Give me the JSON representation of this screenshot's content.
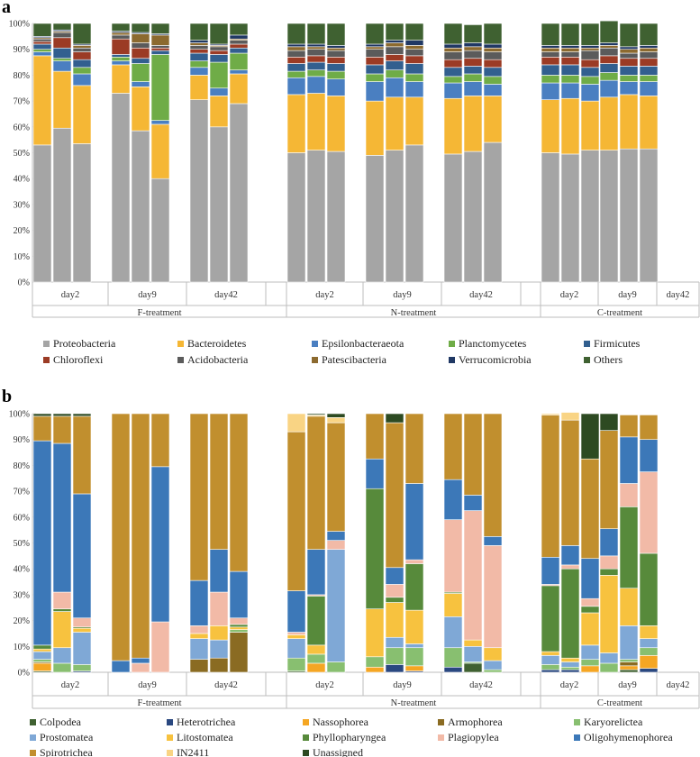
{
  "chart_data": [
    {
      "type": "stacked-bar",
      "panel": "a",
      "ylim": [
        0,
        100
      ],
      "yticks": [
        "0%",
        "10%",
        "20%",
        "30%",
        "40%",
        "50%",
        "60%",
        "70%",
        "80%",
        "90%",
        "100%"
      ],
      "treatments": [
        "F-treatment",
        "N-treatment",
        "C-treatment"
      ],
      "days": [
        "day2",
        "day9",
        "day42"
      ],
      "series": [
        {
          "name": "Proteobacteria",
          "color": "#a5a5a5"
        },
        {
          "name": "Bacteroidetes",
          "color": "#f5b735"
        },
        {
          "name": "Epsilonbacteraeota",
          "color": "#4a7fc1"
        },
        {
          "name": "Planctomycetes",
          "color": "#6fac47"
        },
        {
          "name": "Firmicutes",
          "color": "#325f8f"
        },
        {
          "name": "Chloroflexi",
          "color": "#9b3b25"
        },
        {
          "name": "Acidobacteria",
          "color": "#5b5b5b"
        },
        {
          "name": "Patescibacteria",
          "color": "#8c6a2f"
        },
        {
          "name": "Verrucomicrobia",
          "color": "#203864"
        },
        {
          "name": "Others",
          "color": "#3f6131"
        }
      ],
      "bars": [
        [
          53,
          34.5,
          1.5,
          1,
          2,
          1,
          1,
          0.5,
          0.5,
          5
        ],
        [
          59.5,
          22,
          4,
          1,
          4,
          4,
          2,
          0.5,
          0.5,
          2.5
        ],
        [
          53.5,
          22.5,
          4.5,
          2.5,
          3,
          3,
          1.5,
          1,
          0.5,
          8
        ],
        [
          73,
          11,
          1.5,
          1.5,
          1,
          6,
          1.5,
          1,
          0.5,
          3
        ],
        [
          58.5,
          17,
          2,
          7,
          2,
          4,
          2,
          3.5,
          0.5,
          3.5
        ],
        [
          40,
          21,
          1.5,
          25.5,
          1.5,
          1,
          1,
          4,
          0.5,
          4
        ],
        [
          70.5,
          9.5,
          3,
          2.5,
          3,
          1.5,
          1.5,
          1,
          1,
          6.5
        ],
        [
          60,
          12,
          3,
          10,
          3,
          1.5,
          1.5,
          0.5,
          0.5,
          8
        ],
        [
          69,
          11.5,
          1.5,
          6.5,
          2,
          1.5,
          1.5,
          0.5,
          1.5,
          4.5
        ],
        [
          50,
          22.5,
          6.5,
          2.5,
          3,
          2.5,
          2.5,
          1.5,
          1,
          8
        ],
        [
          51,
          22,
          6.5,
          2.5,
          3,
          2.5,
          2.5,
          1,
          1,
          8
        ],
        [
          50.5,
          21.5,
          6.5,
          3,
          3,
          2.5,
          2.5,
          1,
          1,
          8.5
        ],
        [
          49,
          21,
          7.5,
          3,
          3.5,
          3,
          3,
          1,
          1,
          8
        ],
        [
          51,
          20.5,
          7.5,
          3,
          3.5,
          2.5,
          3,
          1.5,
          1,
          6.5
        ],
        [
          53,
          18.5,
          6,
          3,
          4,
          3,
          2.5,
          1.5,
          2,
          6.5
        ],
        [
          49.5,
          21.5,
          6,
          2.5,
          3.5,
          3,
          3,
          1.5,
          1.5,
          8
        ],
        [
          50.5,
          21.5,
          5.5,
          3,
          3,
          3,
          3,
          1.5,
          1.5,
          7
        ],
        [
          54,
          18,
          4.5,
          3,
          3.5,
          3,
          3,
          1.5,
          1.5,
          8
        ],
        [
          50,
          20.5,
          6.5,
          3,
          4,
          3,
          2,
          1.5,
          1,
          8.5
        ],
        [
          49.5,
          21.5,
          6,
          3,
          4,
          3,
          2,
          1.5,
          1,
          8.5
        ],
        [
          51,
          19,
          6.5,
          3,
          3.5,
          3,
          3.5,
          1,
          1,
          8.5
        ],
        [
          51,
          20.5,
          6.5,
          3,
          3.5,
          3,
          3,
          1,
          1,
          8.5
        ],
        [
          51.5,
          21,
          5,
          2.5,
          3.5,
          3,
          2,
          1.5,
          1,
          9
        ],
        [
          51.5,
          20.5,
          5.5,
          2.5,
          3.5,
          3,
          2.5,
          1.5,
          1,
          8.5
        ]
      ]
    },
    {
      "type": "stacked-bar",
      "panel": "b",
      "ylim": [
        0,
        100
      ],
      "yticks": [
        "0%",
        "10%",
        "20%",
        "30%",
        "40%",
        "50%",
        "60%",
        "70%",
        "80%",
        "90%",
        "100%"
      ],
      "treatments": [
        "F-treatment",
        "N-treatment",
        "C-treatment"
      ],
      "days": [
        "day2",
        "day9",
        "day42"
      ],
      "series": [
        {
          "name": "Colpodea",
          "color": "#3f6131"
        },
        {
          "name": "Heterotrichea",
          "color": "#2a4880"
        },
        {
          "name": "Nassophorea",
          "color": "#f5a623"
        },
        {
          "name": "Armophorea",
          "color": "#8a6b22"
        },
        {
          "name": "Karyorelictea",
          "color": "#88bf70"
        },
        {
          "name": "Prostomatea",
          "color": "#7fa8d6"
        },
        {
          "name": "Litostomatea",
          "color": "#f7c23f"
        },
        {
          "name": "Phyllopharyngea",
          "color": "#578a3b"
        },
        {
          "name": "Plagiopylea",
          "color": "#f2baa7"
        },
        {
          "name": "Oligohymenophorea",
          "color": "#3c78b8"
        },
        {
          "name": "Spirotrichea",
          "color": "#c18f2e"
        },
        {
          "name": "IN2411",
          "color": "#f9d484"
        },
        {
          "name": "Unassigned",
          "color": "#2d4a22"
        }
      ],
      "bars": [
        [
          0.5,
          0,
          3,
          0.5,
          1,
          3,
          1,
          1.5,
          0,
          79,
          9.5,
          0,
          1
        ],
        [
          0,
          0,
          0,
          0,
          3.5,
          6,
          14,
          1,
          6.5,
          57.5,
          10.5,
          0,
          1
        ],
        [
          0,
          0.5,
          0,
          0,
          2.5,
          12.5,
          1.5,
          0.5,
          3.5,
          48,
          30,
          0,
          1
        ],
        [
          0,
          0,
          0,
          0,
          0,
          0,
          0,
          0,
          0,
          4.5,
          95.5,
          0,
          0
        ],
        [
          0,
          0,
          0,
          0,
          0,
          0,
          0,
          0,
          3.5,
          2,
          94.5,
          0,
          0
        ],
        [
          0,
          0,
          0,
          0,
          0,
          0,
          0,
          0,
          19.5,
          60,
          20.5,
          0,
          0
        ],
        [
          0,
          0,
          0,
          5,
          0,
          8,
          2,
          0,
          3,
          17.5,
          64.5,
          0,
          0
        ],
        [
          0,
          0,
          0,
          5.5,
          0,
          7,
          5.5,
          0,
          13,
          16.5,
          52.5,
          0,
          0
        ],
        [
          0,
          0,
          0,
          15.5,
          1,
          0,
          1,
          1,
          2.5,
          18,
          61,
          0,
          0
        ],
        [
          0.5,
          0,
          0,
          0,
          5,
          7.5,
          1.5,
          0,
          1,
          16,
          61.5,
          7,
          0
        ],
        [
          0,
          0,
          3.5,
          0,
          3.5,
          0,
          3.5,
          19,
          0.5,
          17.5,
          51.5,
          0.5,
          0.5
        ],
        [
          0,
          0,
          0,
          0,
          4,
          43.5,
          0,
          0,
          3.5,
          3.5,
          42,
          2,
          1.5
        ],
        [
          0,
          0,
          2,
          0,
          4,
          0,
          18.5,
          46.5,
          0,
          11.5,
          17.5,
          0,
          0
        ],
        [
          0,
          3,
          0,
          0,
          6.5,
          4,
          13.5,
          2,
          5,
          6.5,
          56,
          0,
          3.5
        ],
        [
          0,
          0.5,
          2,
          0,
          7,
          1.5,
          13,
          18,
          1.5,
          29.5,
          27,
          0,
          0
        ],
        [
          0,
          2,
          0,
          0,
          7.5,
          12,
          9,
          0.5,
          28,
          15.5,
          25.5,
          0,
          0
        ],
        [
          3.5,
          0,
          0,
          0,
          0.5,
          6,
          2.5,
          0,
          50,
          6,
          31.5,
          0,
          0
        ],
        [
          0,
          0,
          0,
          0,
          1,
          3.5,
          5,
          0,
          39.5,
          3.5,
          47.5,
          0,
          0
        ],
        [
          0,
          1,
          0,
          0,
          2,
          3.5,
          1.5,
          25.5,
          0.5,
          10.5,
          55,
          0.5,
          0
        ],
        [
          0,
          1,
          0,
          0,
          1,
          2,
          1.5,
          34.5,
          1.5,
          7.5,
          48.5,
          3,
          0
        ],
        [
          0,
          0,
          2.5,
          0,
          2.5,
          5.5,
          12.5,
          2.5,
          3,
          15.5,
          38.5,
          0,
          17.5
        ],
        [
          0,
          0,
          0,
          0,
          3.5,
          4,
          30,
          2.5,
          5,
          10.5,
          38,
          0,
          6.5
        ],
        [
          1,
          0,
          1.5,
          1.5,
          1,
          13,
          14.5,
          31.5,
          9,
          18,
          8.5,
          0,
          0
        ],
        [
          0,
          1.5,
          5,
          0,
          3,
          3.5,
          5,
          28,
          31.5,
          12.5,
          9.5,
          0,
          0
        ]
      ]
    }
  ]
}
